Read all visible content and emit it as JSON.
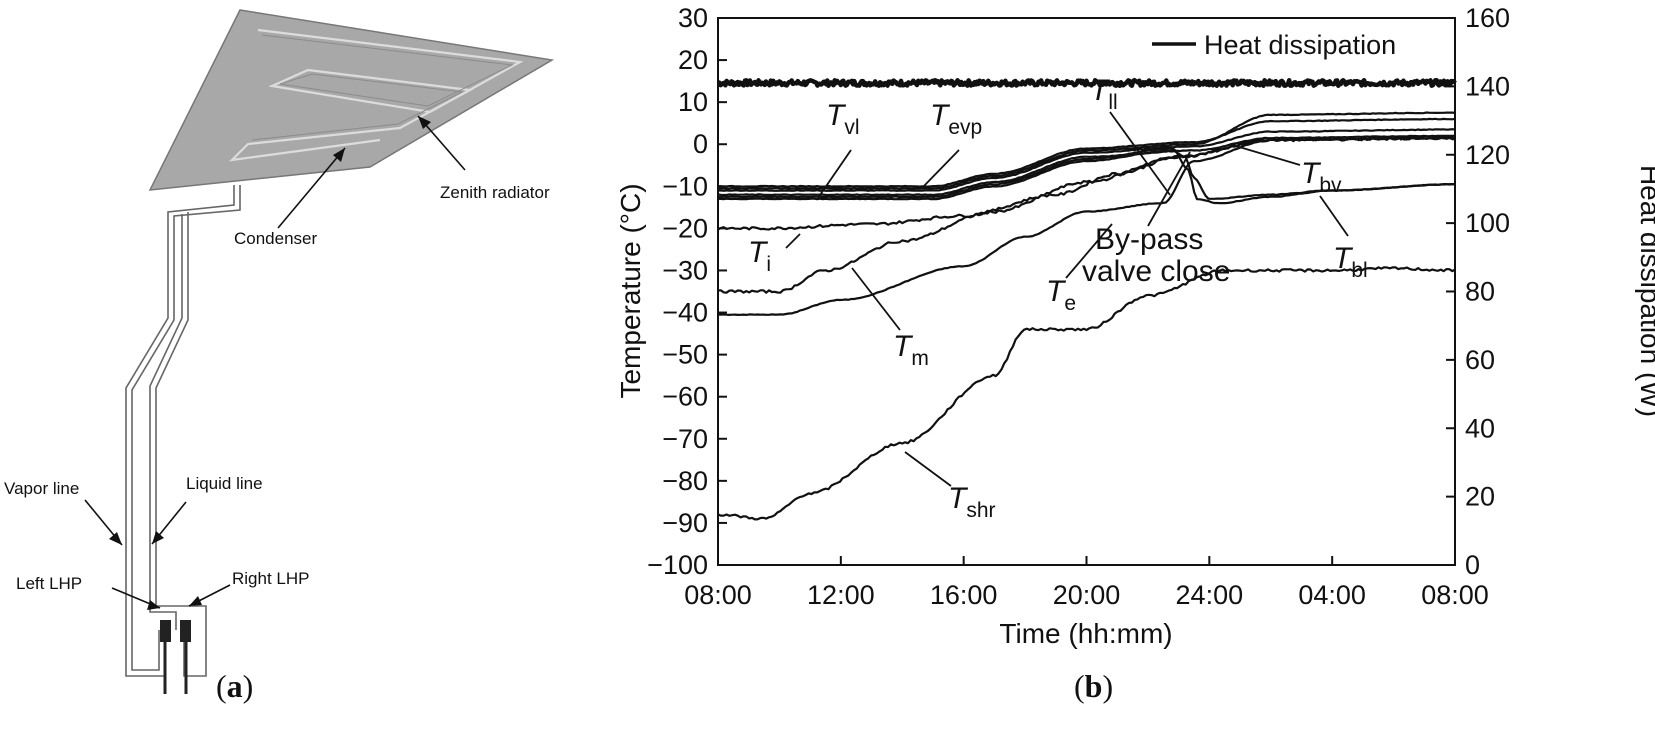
{
  "panel_a": {
    "label_open": "(",
    "label_letter": "a",
    "label_close": ")",
    "annotations": {
      "zenith_radiator": "Zenith radiator",
      "condenser": "Condenser",
      "vapor_line": "Vapor line",
      "liquid_line": "Liquid line",
      "left_lhp": "Left LHP",
      "right_lhp": "Right LHP"
    },
    "colors": {
      "radiator_fill": "#a8a8a8",
      "line": "#555555"
    }
  },
  "panel_b": {
    "label_open": "(",
    "label_letter": "b",
    "label_close": ")"
  },
  "chart_data": {
    "type": "line",
    "title": "",
    "xlabel": "Time (hh:mm)",
    "ylabel": "Temperature (°C)",
    "y2label": "Heat dissipation (W)",
    "x_unit": "hours from 08:00",
    "xlim": [
      0,
      24
    ],
    "x_ticks": [
      0,
      4,
      8,
      12,
      16,
      20,
      24
    ],
    "x_tick_labels": [
      "08:00",
      "12:00",
      "16:00",
      "20:00",
      "24:00",
      "04:00",
      "08:00"
    ],
    "ylim": [
      -100,
      30
    ],
    "y_ticks": [
      30,
      20,
      10,
      0,
      -10,
      -20,
      -30,
      -40,
      -50,
      -60,
      -70,
      -80,
      -90,
      -100
    ],
    "y2lim": [
      0,
      160
    ],
    "y2_ticks": [
      160,
      140,
      120,
      100,
      80,
      60,
      40,
      20,
      0
    ],
    "legend": {
      "entries": [
        "Heat dissipation"
      ],
      "location": "top-right"
    },
    "series": [
      {
        "name": "Heat dissipation",
        "axis": "right",
        "x": [
          0,
          4,
          8,
          12,
          16,
          20,
          24
        ],
        "values": [
          141,
          141,
          141,
          141,
          141,
          141,
          141
        ]
      },
      {
        "name": "T_vl",
        "axis": "left",
        "x": [
          0,
          7,
          9,
          12,
          15.5,
          18,
          24
        ],
        "values": [
          -11,
          -11,
          -8,
          -2,
          -0.5,
          3,
          3.5
        ]
      },
      {
        "name": "T_evp",
        "axis": "left",
        "x": [
          0,
          7,
          9,
          12,
          15.5,
          18,
          24
        ],
        "values": [
          -10.5,
          -10.5,
          -7.5,
          -1.5,
          0,
          7,
          7.5
        ]
      },
      {
        "name": "T_evp upper",
        "axis": "left",
        "x": [
          0,
          7,
          9,
          12,
          15.5,
          18,
          24
        ],
        "values": [
          -10,
          -10,
          -7,
          -1,
          0.5,
          5.5,
          6
        ]
      },
      {
        "name": "T_bv",
        "axis": "left",
        "x": [
          0,
          7,
          9,
          12,
          15.5,
          18,
          24
        ],
        "values": [
          -12,
          -12,
          -9,
          -3,
          -1.5,
          1.5,
          2
        ]
      },
      {
        "name": "T_i",
        "axis": "left",
        "x": [
          0,
          1.5,
          5,
          8,
          11,
          13,
          15,
          18,
          24
        ],
        "values": [
          -20,
          -20,
          -19,
          -17,
          -12,
          -7,
          -3,
          1,
          1.5
        ]
      },
      {
        "name": "T_m",
        "axis": "left",
        "x": [
          0,
          2,
          3.5,
          6,
          9,
          12,
          15,
          18,
          24
        ],
        "values": [
          -35,
          -35,
          -30,
          -23,
          -16,
          -9,
          -3,
          1,
          1.5
        ]
      },
      {
        "name": "T_e",
        "axis": "left",
        "x": [
          0,
          2,
          4,
          8,
          10,
          12,
          14.5,
          15.5,
          18,
          24
        ],
        "values": [
          -40.5,
          -40.5,
          -37,
          -29,
          -22,
          -16,
          -14,
          -4,
          1,
          1.5
        ]
      },
      {
        "name": "T_ll",
        "axis": "left",
        "x": [
          0,
          7,
          9,
          12,
          14.8,
          15.2,
          15.5,
          16,
          18,
          20,
          24
        ],
        "values": [
          -13,
          -13,
          -10,
          -4,
          -1.5,
          -3,
          -8,
          -13,
          -12,
          -11,
          -9.5
        ]
      },
      {
        "name": "T_bl",
        "axis": "left",
        "x": [
          0,
          7,
          9,
          12,
          14.8,
          15.3,
          15.6,
          16.3,
          18,
          20,
          24
        ],
        "values": [
          -12.5,
          -12.5,
          -9.5,
          -3.5,
          -1,
          -6,
          -13,
          -14,
          -12.5,
          -11,
          -9.5
        ]
      },
      {
        "name": "T_shr",
        "axis": "left",
        "x": [
          0,
          1.5,
          3,
          6,
          9,
          10,
          12,
          14,
          16.5,
          20,
          22,
          24
        ],
        "values": [
          -88,
          -89,
          -83,
          -71,
          -55,
          -44,
          -44,
          -36,
          -30,
          -30,
          -29.5,
          -30
        ]
      }
    ],
    "line_labels": [
      {
        "symbol": "T",
        "sub": "vl",
        "series": "T_vl"
      },
      {
        "symbol": "T",
        "sub": "evp",
        "series": "T_evp"
      },
      {
        "symbol": "T",
        "sub": "ll",
        "series": "T_ll"
      },
      {
        "symbol": "T",
        "sub": "i",
        "series": "T_i"
      },
      {
        "symbol": "T",
        "sub": "bv",
        "series": "T_bv"
      },
      {
        "symbol": "T",
        "sub": "bl",
        "series": "T_bl"
      },
      {
        "symbol": "T",
        "sub": "e",
        "series": "T_e"
      },
      {
        "symbol": "T",
        "sub": "m",
        "series": "T_m"
      },
      {
        "symbol": "T",
        "sub": "shr",
        "series": "T_shr"
      }
    ],
    "annotations": {
      "bypass_line1": "By-pass",
      "bypass_line2": "valve close"
    }
  }
}
